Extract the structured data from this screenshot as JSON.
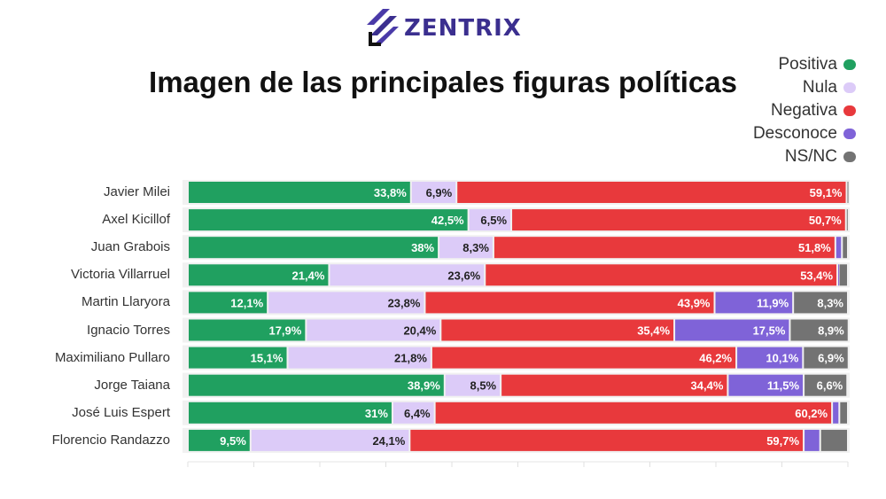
{
  "logo": {
    "text": "ZENTRIX"
  },
  "chart_data": {
    "type": "bar",
    "orientation": "horizontal-stacked",
    "title": "Imagen de las principales figuras políticas",
    "xlim": [
      0,
      100
    ],
    "grid": false,
    "legend_position": "top-right",
    "categories": [
      "Javier Milei",
      "Axel Kicillof",
      "Juan Grabois",
      "Victoria Villarruel",
      "Martin Llaryora",
      "Ignacio Torres",
      "Maximiliano Pullaro",
      "Jorge Taiana",
      "José Luis Espert",
      "Florencio Randazzo"
    ],
    "series": [
      {
        "name": "Positiva",
        "color": "#20a060",
        "values": [
          33.8,
          42.5,
          38,
          21.4,
          12.1,
          17.9,
          15.1,
          38.9,
          31,
          9.5
        ],
        "labels": [
          "33,8%",
          "42,5%",
          "38%",
          "21,4%",
          "12,1%",
          "17,9%",
          "15,1%",
          "38,9%",
          "31%",
          "9,5%"
        ]
      },
      {
        "name": "Nula",
        "color": "#dccbf8",
        "values": [
          6.9,
          6.5,
          8.3,
          23.6,
          23.8,
          20.4,
          21.8,
          8.5,
          6.4,
          24.1
        ],
        "labels": [
          "6,9%",
          "6,5%",
          "8,3%",
          "23,6%",
          "23,8%",
          "20,4%",
          "21,8%",
          "8,5%",
          "6,4%",
          "24,1%"
        ]
      },
      {
        "name": "Negativa",
        "color": "#e8393c",
        "values": [
          59.1,
          50.7,
          51.8,
          53.4,
          43.9,
          35.4,
          46.2,
          34.4,
          60.2,
          59.7
        ],
        "labels": [
          "59,1%",
          "50,7%",
          "51,8%",
          "53,4%",
          "43,9%",
          "35,4%",
          "46,2%",
          "34,4%",
          "60,2%",
          "59,7%"
        ]
      },
      {
        "name": "Desconoce",
        "color": "#7f63d8",
        "values": [
          0,
          0,
          1.0,
          0.2,
          11.9,
          17.5,
          10.1,
          11.5,
          1.1,
          2.5
        ],
        "labels": [
          "",
          "",
          "",
          "",
          "11,9%",
          "17,5%",
          "10,1%",
          "11,5%",
          "",
          ""
        ]
      },
      {
        "name": "NS/NC",
        "color": "#737373",
        "values": [
          0.2,
          0.3,
          0.9,
          1.4,
          8.3,
          8.9,
          6.9,
          6.6,
          1.3,
          4.2
        ],
        "labels": [
          "",
          "",
          "",
          "",
          "8,3%",
          "8,9%",
          "6,9%",
          "6,6%",
          "",
          ""
        ]
      }
    ]
  }
}
